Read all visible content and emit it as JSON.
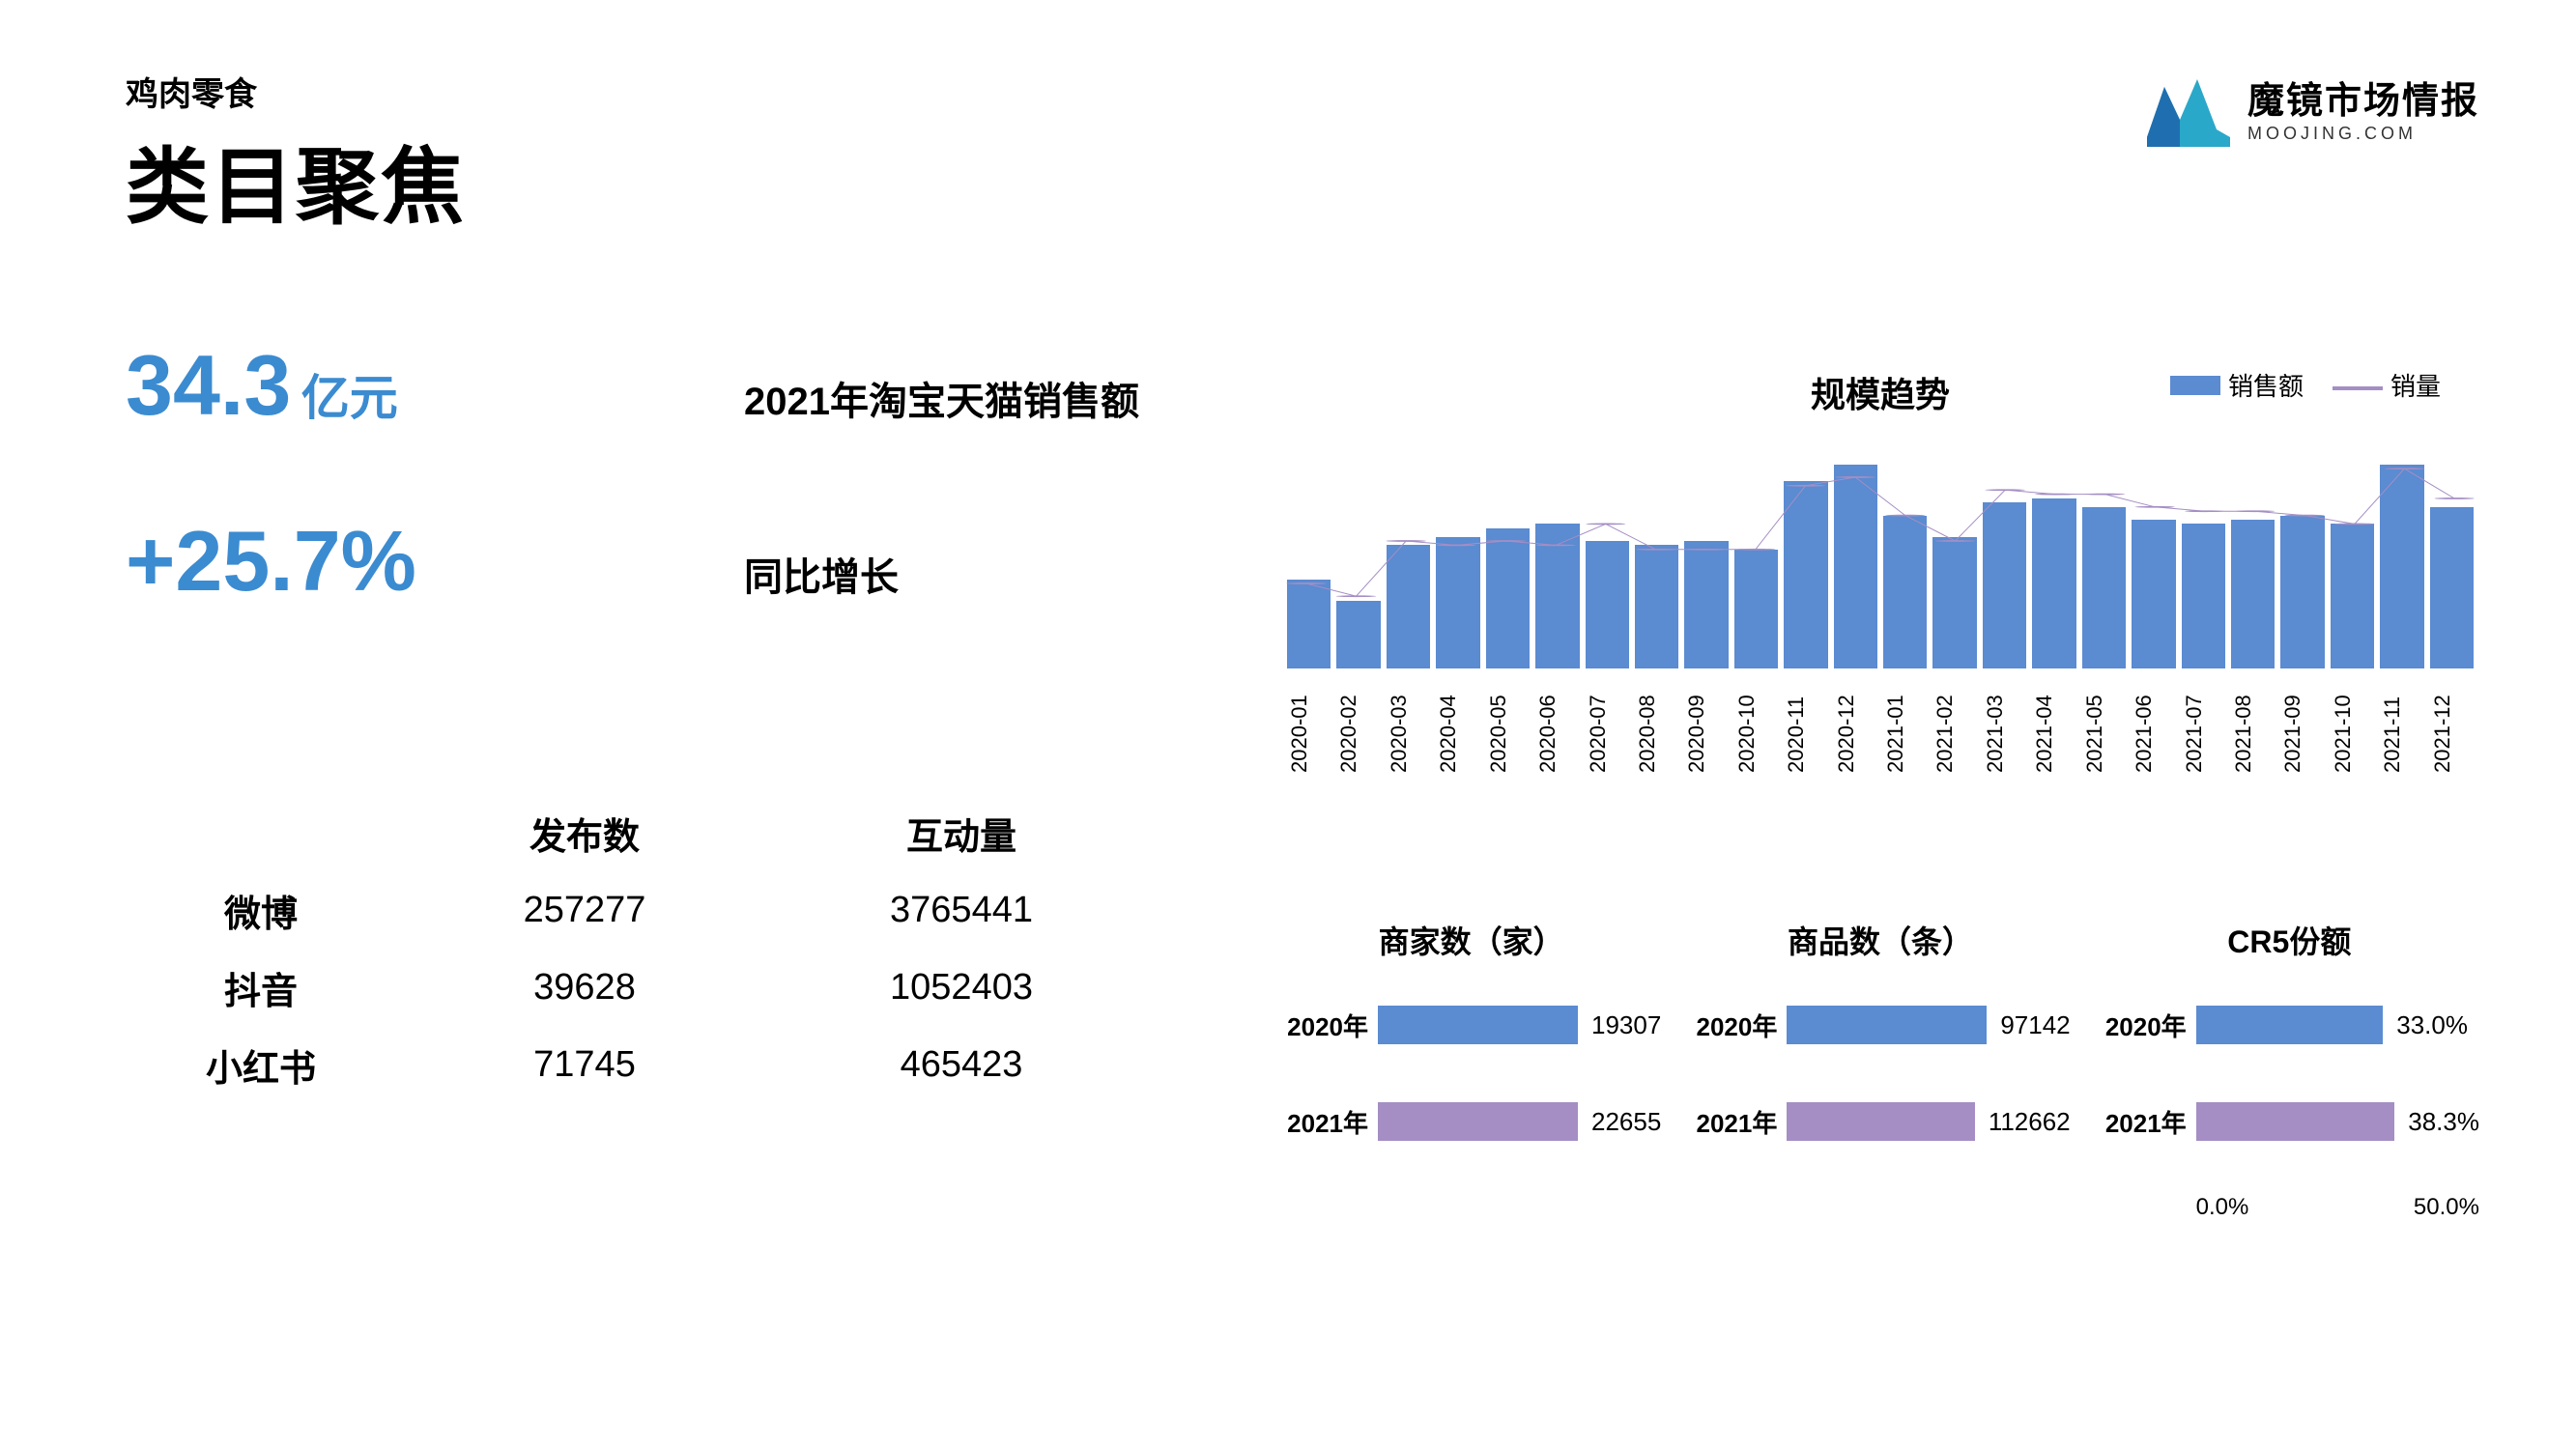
{
  "header": {
    "subtitle": "鸡肉零食",
    "title": "类目聚焦",
    "brand_cn": "魔镜市场情报",
    "brand_en": "MOOJING.COM"
  },
  "colors": {
    "accent_text": "#3b8bd1",
    "bar_blue": "#5b8bd1",
    "bar_purple": "#a48ec4",
    "line_purple": "#a48ec4",
    "background": "#ffffff",
    "text": "#000000"
  },
  "kpis": {
    "sales_value": "34.3",
    "sales_unit": "亿元",
    "sales_label": "2021年淘宝天猫销售额",
    "yoy_value": "+25.7%",
    "yoy_label": "同比增长"
  },
  "social": {
    "header": {
      "col0": "",
      "col1": "发布数",
      "col2": "互动量"
    },
    "rows": [
      {
        "name": "微博",
        "posts": "257277",
        "engage": "3765441"
      },
      {
        "name": "抖音",
        "posts": "39628",
        "engage": "1052403"
      },
      {
        "name": "小红书",
        "posts": "71745",
        "engage": "465423"
      }
    ]
  },
  "trend": {
    "title": "规模趋势",
    "legend": {
      "bar": "销售额",
      "line": "销量"
    },
    "ymax": 100,
    "bar_color": "#5b8bd1",
    "line_color": "#a48ec4",
    "categories": [
      "2020-01",
      "2020-02",
      "2020-03",
      "2020-04",
      "2020-05",
      "2020-06",
      "2020-07",
      "2020-08",
      "2020-09",
      "2020-10",
      "2020-11",
      "2020-12",
      "2021-01",
      "2021-02",
      "2021-03",
      "2021-04",
      "2021-05",
      "2021-06",
      "2021-07",
      "2021-08",
      "2021-09",
      "2021-10",
      "2021-11",
      "2021-12"
    ],
    "bars": [
      42,
      32,
      58,
      62,
      66,
      68,
      60,
      58,
      60,
      56,
      88,
      96,
      72,
      62,
      78,
      80,
      76,
      70,
      68,
      70,
      72,
      68,
      96,
      76
    ],
    "line": [
      40,
      34,
      60,
      58,
      60,
      58,
      68,
      56,
      56,
      56,
      86,
      90,
      72,
      60,
      84,
      82,
      82,
      76,
      74,
      74,
      72,
      68,
      94,
      80
    ]
  },
  "mini": [
    {
      "title": "商家数（家）",
      "max": 25000,
      "value_fmt": "int",
      "rows": [
        {
          "label": "2020年",
          "value": 19307,
          "display": "19307",
          "color": "#5b8bd1"
        },
        {
          "label": "2021年",
          "value": 22655,
          "display": "22655",
          "color": "#a48ec4"
        }
      ],
      "xticks": []
    },
    {
      "title": "商品数（条）",
      "max": 130000,
      "value_fmt": "int",
      "rows": [
        {
          "label": "2020年",
          "value": 97142,
          "display": "97142",
          "color": "#5b8bd1"
        },
        {
          "label": "2021年",
          "value": 112662,
          "display": "112662",
          "color": "#a48ec4"
        }
      ],
      "xticks": []
    },
    {
      "title": "CR5份额",
      "max": 50,
      "value_fmt": "pct",
      "rows": [
        {
          "label": "2020年",
          "value": 33.0,
          "display": "33.0%",
          "color": "#5b8bd1"
        },
        {
          "label": "2021年",
          "value": 38.3,
          "display": "38.3%",
          "color": "#a48ec4"
        }
      ],
      "xticks": [
        "0.0%",
        "50.0%"
      ]
    }
  ]
}
